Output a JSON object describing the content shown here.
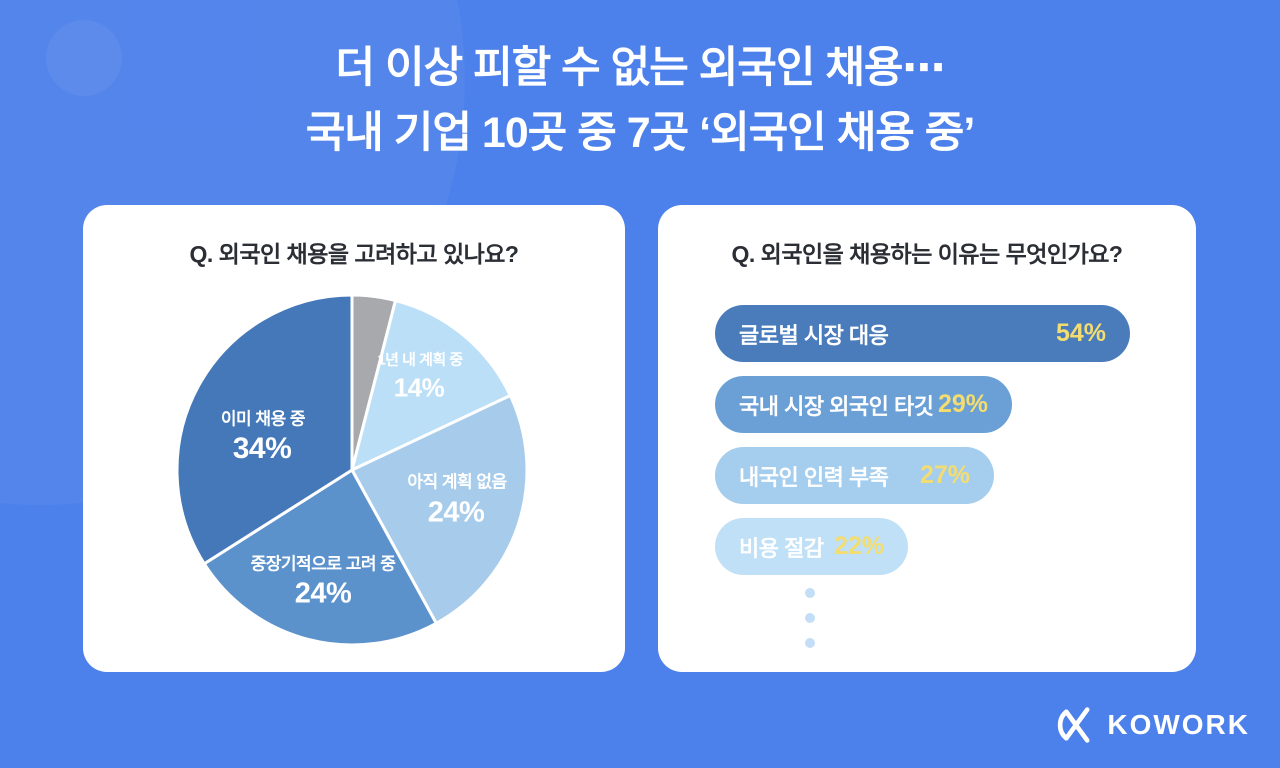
{
  "background": {
    "color": "#4C80EB",
    "card_color": "#FFFFFF"
  },
  "header": {
    "title_line1": "더 이상 피할 수 없는 외국인 채용⋯",
    "title_line2": "국내 기업 10곳 중 7곳 ‘외국인 채용 중’"
  },
  "pie_card": {
    "question": "Q. 외국인 채용을 고려하고 있나요?"
  },
  "bar_card": {
    "question": "Q. 외국인을 채용하는 이유는 무엇인가요?"
  },
  "chart_data": [
    {
      "type": "pie",
      "title": "Q. 외국인 채용을 고려하고 있나요?",
      "start": "12-o'clock",
      "direction": "clockwise",
      "slices": [
        {
          "label": "",
          "value": 4,
          "color": "#A7A9AC",
          "show_label": false
        },
        {
          "label": "1년 내 계획 중",
          "value": 14,
          "color": "#BCDFF8",
          "show_label": true
        },
        {
          "label": "아직 계획 없음",
          "value": 24,
          "color": "#A7CCEB",
          "show_label": true
        },
        {
          "label": "중장기적으로 고려 중",
          "value": 24,
          "color": "#5C92CC",
          "show_label": true
        },
        {
          "label": "이미 채용 중",
          "value": 34,
          "color": "#4478B8",
          "show_label": true
        }
      ],
      "label_color": "#FFFFFF",
      "slice_gap_color": "#FFFFFF"
    },
    {
      "type": "bar",
      "title": "Q. 외국인을 채용하는 이유는 무엇인가요?",
      "orientation": "horizontal",
      "categories": [
        "글로벌 시장 대응",
        "국내 시장 외국인 타깃",
        "내국인 인력 부족",
        "비용 절감"
      ],
      "values": [
        54,
        29,
        27,
        22
      ],
      "bar_colors": [
        "#4A7CBC",
        "#6BA0D6",
        "#A5CDED",
        "#BFE0F6"
      ],
      "value_color": "#F3DD70",
      "label_color": "#FFFFFF",
      "more_indicator": "three-dots"
    }
  ],
  "footer": {
    "brand": "KOWORK"
  }
}
